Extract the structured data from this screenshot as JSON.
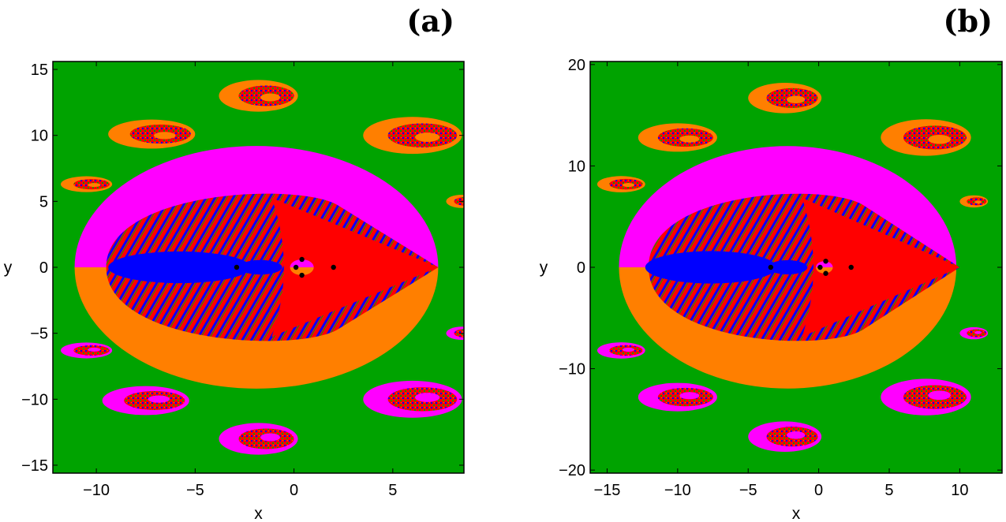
{
  "colors": {
    "green": "#00a300",
    "magenta": "#ff00ff",
    "orange": "#ff7f00",
    "red": "#ff0000",
    "blue": "#0000ff",
    "point": "#000000"
  },
  "chart_data": [
    {
      "type": "heatmap",
      "panel_label": "(a)",
      "xlabel": "x",
      "ylabel": "y",
      "xlim": [
        -12.2,
        8.6
      ],
      "ylim": [
        -15.6,
        15.6
      ],
      "xticks": [
        -10,
        -5,
        0,
        5
      ],
      "yticks": [
        -15,
        -10,
        -5,
        0,
        5,
        10,
        15
      ],
      "grid": false,
      "equilibrium_points": [
        {
          "x": -2.9,
          "y": 0
        },
        {
          "x": 0.1,
          "y": 0
        },
        {
          "x": 2.0,
          "y": 0
        },
        {
          "x": 0.4,
          "y": 0.6
        },
        {
          "x": 0.4,
          "y": -0.6
        }
      ]
    },
    {
      "type": "heatmap",
      "panel_label": "(b)",
      "xlabel": "x",
      "ylabel": "y",
      "xlim": [
        -16.2,
        13.0
      ],
      "ylim": [
        -20.3,
        20.3
      ],
      "xticks": [
        -15,
        -10,
        -5,
        0,
        5,
        10
      ],
      "yticks": [
        -20,
        -10,
        0,
        10,
        20
      ],
      "grid": false,
      "equilibrium_points": [
        {
          "x": -3.4,
          "y": 0
        },
        {
          "x": 0.1,
          "y": 0
        },
        {
          "x": 2.3,
          "y": 0
        },
        {
          "x": 0.5,
          "y": 0.6
        },
        {
          "x": 0.5,
          "y": -0.6
        }
      ]
    }
  ]
}
